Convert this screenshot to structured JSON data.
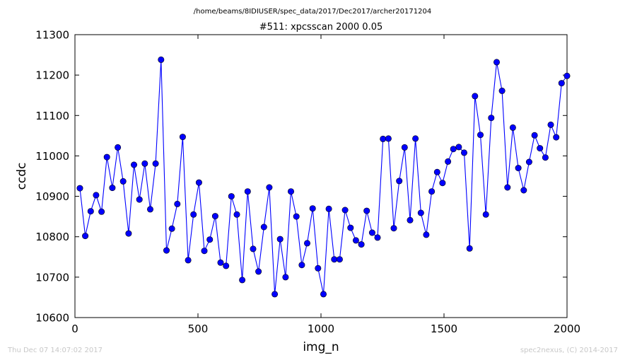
{
  "chart_data": {
    "type": "line",
    "suptitle": "/home/beams/8IDIUSER/spec_data/2017/Dec2017/archer20171204",
    "title": "#511: xpcsscan 2000 0.05",
    "xlabel": "img_n",
    "ylabel": "ccdc",
    "xlim": [
      0,
      2000
    ],
    "ylim": [
      10600,
      11300
    ],
    "xticks": [
      0,
      500,
      1000,
      1500,
      2000
    ],
    "yticks": [
      10600,
      10700,
      10800,
      10900,
      11000,
      11100,
      11200,
      11300
    ],
    "grid": false,
    "marker": "circle",
    "color": "#0000ff",
    "series": [
      {
        "x": [
          20,
          42,
          64,
          86,
          108,
          130,
          152,
          174,
          196,
          218,
          240,
          262,
          284,
          306,
          328,
          350,
          372,
          394,
          416,
          438,
          460,
          482,
          504,
          526,
          548,
          570,
          592,
          614,
          636,
          658,
          680,
          702,
          724,
          746,
          768,
          790,
          812,
          834,
          856,
          878,
          900,
          922,
          944,
          966,
          988,
          1010,
          1032,
          1054,
          1076,
          1098,
          1120,
          1142,
          1164,
          1186,
          1208,
          1230,
          1252,
          1274,
          1296,
          1318,
          1340,
          1362,
          1384,
          1406,
          1428,
          1450,
          1472,
          1494,
          1516,
          1538,
          1560,
          1582,
          1604,
          1626,
          1648,
          1670,
          1692,
          1714,
          1736,
          1758,
          1780,
          1802,
          1824,
          1846,
          1868,
          1890,
          1912,
          1934,
          1956,
          1978,
          2000
        ],
        "y": [
          10920,
          10802,
          10863,
          10903,
          10862,
          10997,
          10921,
          11021,
          10937,
          10808,
          10978,
          10892,
          10981,
          10868,
          10981,
          11238,
          10766,
          10820,
          10881,
          11047,
          10742,
          10855,
          10934,
          10765,
          10793,
          10851,
          10736,
          10728,
          10900,
          10855,
          10693,
          10912,
          10770,
          10714,
          10824,
          10922,
          10658,
          10794,
          10700,
          10912,
          10850,
          10730,
          10784,
          10870,
          10722,
          10658,
          10869,
          10744,
          10744,
          10866,
          10822,
          10791,
          10781,
          10864,
          10810,
          10798,
          11042,
          11043,
          10821,
          10938,
          11021,
          10841,
          11043,
          10859,
          10805,
          10912,
          10960,
          10933,
          10986,
          11017,
          11022,
          11008,
          10771,
          11148,
          11052,
          10855,
          11094,
          11232,
          11161,
          10922,
          11070,
          10970,
          10915,
          10985,
          11051,
          11019,
          10996,
          11077,
          11046,
          11180,
          11198
        ]
      }
    ]
  },
  "footer": {
    "left": "Thu Dec 07 14:07:02 2017",
    "right": "spec2nexus, (C) 2014-2017"
  }
}
